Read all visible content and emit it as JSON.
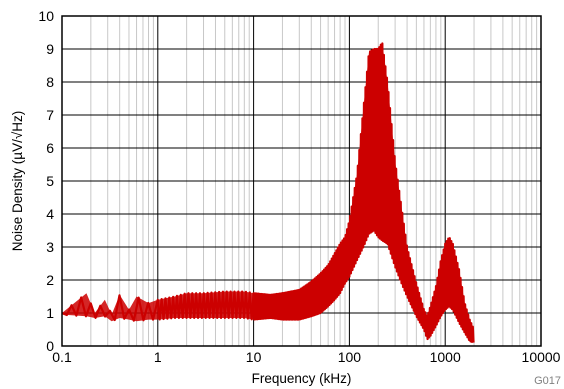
{
  "chart_data": {
    "type": "line",
    "xlabel": "Frequency (kHz)",
    "ylabel": "Noise Density (µV/√Hz)",
    "x_scale": "log",
    "xlim": [
      0.1,
      10000
    ],
    "ylim": [
      0,
      10
    ],
    "x_ticks": [
      "0.1",
      "1",
      "10",
      "100",
      "1000",
      "10000"
    ],
    "y_ticks": [
      "0",
      "1",
      "2",
      "3",
      "4",
      "5",
      "6",
      "7",
      "8",
      "9",
      "10"
    ],
    "grid": true,
    "series_color": "#cc0000",
    "series": [
      {
        "x": [
          0.1,
          0.18,
          0.22,
          0.28,
          0.33,
          0.4,
          0.5,
          0.6,
          0.8,
          1,
          1.5,
          2,
          3,
          5,
          8,
          10,
          15,
          20,
          30,
          40,
          50,
          60,
          70,
          80,
          90,
          100,
          120,
          140,
          160,
          180,
          200,
          220,
          250,
          300,
          350,
          400,
          500,
          600,
          650,
          700,
          800,
          900,
          1000,
          1100,
          1200,
          1400,
          1600,
          1800,
          2000
        ],
        "y_upper": [
          1.0,
          1.6,
          1.0,
          1.4,
          0.95,
          1.55,
          1.1,
          1.5,
          1.3,
          1.4,
          1.5,
          1.6,
          1.6,
          1.65,
          1.65,
          1.6,
          1.55,
          1.6,
          1.7,
          1.95,
          2.2,
          2.45,
          2.8,
          3.1,
          3.3,
          3.8,
          5.2,
          7.2,
          8.9,
          9.0,
          9.0,
          9.2,
          8.0,
          5.6,
          4.2,
          3.0,
          1.9,
          1.1,
          0.9,
          1.2,
          1.8,
          2.6,
          3.1,
          3.3,
          3.1,
          2.3,
          1.3,
          0.8,
          0.5
        ],
        "y_lower": [
          0.95,
          0.9,
          0.85,
          0.9,
          0.75,
          0.85,
          0.8,
          0.75,
          0.8,
          0.8,
          0.85,
          0.85,
          0.85,
          0.85,
          0.85,
          0.8,
          0.85,
          0.8,
          0.8,
          0.9,
          1.0,
          1.2,
          1.4,
          1.6,
          1.9,
          2.1,
          2.6,
          3.0,
          3.4,
          3.5,
          3.3,
          3.2,
          3.1,
          2.4,
          1.9,
          1.5,
          0.9,
          0.5,
          0.2,
          0.3,
          0.6,
          0.9,
          1.1,
          1.2,
          1.1,
          0.7,
          0.4,
          0.15,
          0.1
        ]
      }
    ],
    "code_label": "G017"
  }
}
